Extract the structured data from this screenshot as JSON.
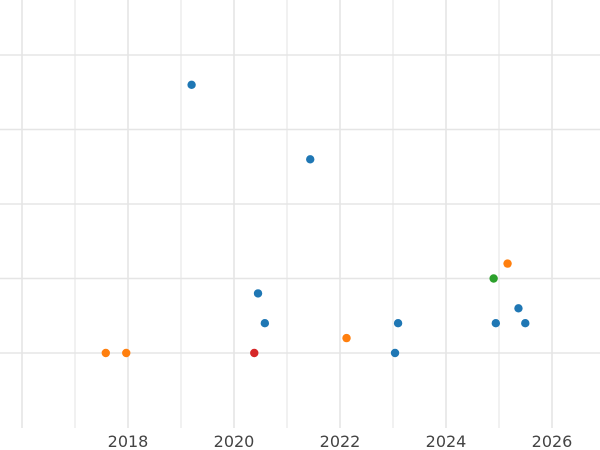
{
  "chart_data": {
    "type": "scatter",
    "title": "",
    "xlabel": "",
    "ylabel": "",
    "grid": true,
    "x_ticks": [
      "2018",
      "2020",
      "2022",
      "2024",
      "2026"
    ],
    "xlim": [
      "2016-01-01",
      "2026-12-31"
    ],
    "ylim": [
      0,
      28
    ],
    "y_tick_values": [
      5,
      10,
      15,
      20,
      25
    ],
    "y_tick_labels_visible": false,
    "colors": {
      "blue": "#1f77b4",
      "orange": "#ff7f0e",
      "green": "#2ca02c",
      "red": "#d62728",
      "grid": "#e5e5e5",
      "axis_text": "#444444"
    },
    "points": [
      {
        "x": "2019-03-15",
        "y": 23.0,
        "color": "blue"
      },
      {
        "x": "2021-06-10",
        "y": 18.0,
        "color": "blue"
      },
      {
        "x": "2020-06-15",
        "y": 9.0,
        "color": "blue"
      },
      {
        "x": "2020-08-01",
        "y": 7.0,
        "color": "blue"
      },
      {
        "x": "2023-01-15",
        "y": 5.0,
        "color": "blue"
      },
      {
        "x": "2023-02-05",
        "y": 7.0,
        "color": "blue"
      },
      {
        "x": "2024-12-10",
        "y": 7.0,
        "color": "blue"
      },
      {
        "x": "2025-05-15",
        "y": 8.0,
        "color": "blue"
      },
      {
        "x": "2025-07-01",
        "y": 7.0,
        "color": "blue"
      },
      {
        "x": "2017-08-01",
        "y": 5.0,
        "color": "orange"
      },
      {
        "x": "2017-12-20",
        "y": 5.0,
        "color": "orange"
      },
      {
        "x": "2022-02-15",
        "y": 6.0,
        "color": "orange"
      },
      {
        "x": "2025-03-01",
        "y": 11.0,
        "color": "orange"
      },
      {
        "x": "2024-11-25",
        "y": 10.0,
        "color": "green"
      },
      {
        "x": "2020-05-20",
        "y": 5.0,
        "color": "red"
      }
    ]
  }
}
